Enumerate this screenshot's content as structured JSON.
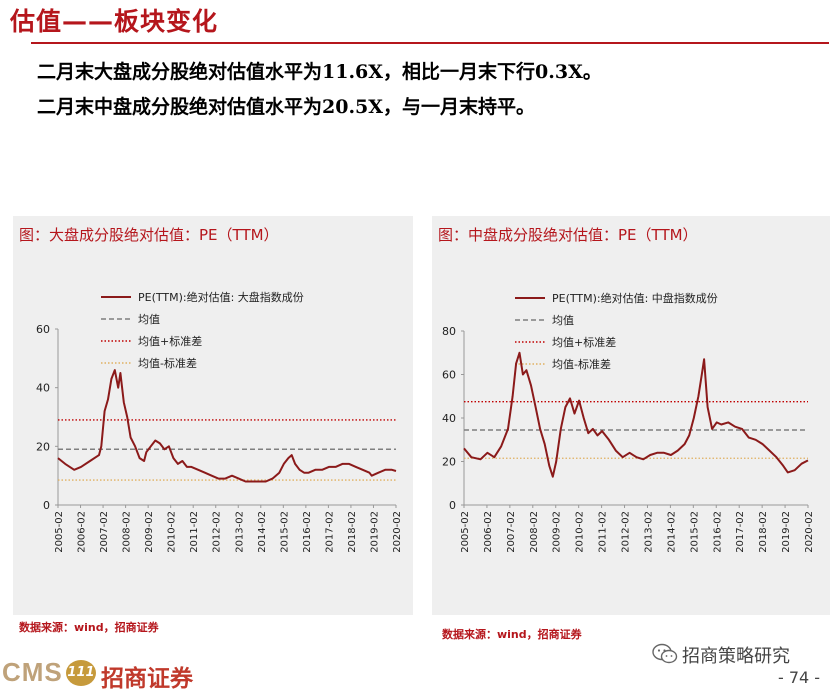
{
  "header": {
    "title": "估值——板块变化",
    "bullets": [
      "二月末大盘成分股绝对估值水平为11.6X，相比一月末下行0.3X。",
      "二月末中盘成分股绝对估值水平为20.5X，与一月末持平。"
    ]
  },
  "colors": {
    "accent": "#b5161c",
    "series": "#8b1a1a",
    "mean": "#7f7f7f",
    "plus_sd": "#c00000",
    "minus_sd": "#e0b060",
    "panel_bg": "#efefef"
  },
  "charts_text": {
    "left": {
      "title_lead": "图：",
      "title_text": "大盘成分股绝对估值：PE（TTM）",
      "source": "数据来源：wind，招商证券"
    },
    "right": {
      "title_lead": "图：",
      "title_text": "中盘成分股绝对估值：PE（TTM）",
      "source": "数据来源：wind，招商证券"
    }
  },
  "chart_data": [
    {
      "type": "line",
      "title": "图：大盘成分股绝对估值：PE（TTM）",
      "xlabel": "",
      "ylabel": "",
      "x_ticks": [
        "2005-02",
        "2006-02",
        "2007-02",
        "2008-02",
        "2009-02",
        "2010-02",
        "2011-02",
        "2012-02",
        "2013-02",
        "2014-02",
        "2015-02",
        "2016-02",
        "2017-02",
        "2018-02",
        "2019-02",
        "2020-02"
      ],
      "ylim": [
        0,
        60
      ],
      "y_ticks": [
        0,
        20,
        40,
        60
      ],
      "grid": false,
      "legend_position": "top",
      "series": [
        {
          "name": "PE(TTM):绝对估值: 大盘指数成份",
          "style": "solid",
          "x": [
            2005.08,
            2005.4,
            2005.8,
            2006.1,
            2006.5,
            2006.9,
            2007.0,
            2007.15,
            2007.3,
            2007.45,
            2007.6,
            2007.75,
            2007.85,
            2008.0,
            2008.15,
            2008.3,
            2008.5,
            2008.7,
            2008.9,
            2009.0,
            2009.2,
            2009.4,
            2009.6,
            2009.8,
            2010.0,
            2010.2,
            2010.4,
            2010.6,
            2010.8,
            2011.0,
            2011.3,
            2011.6,
            2011.9,
            2012.2,
            2012.5,
            2012.8,
            2013.1,
            2013.4,
            2013.7,
            2014.0,
            2014.3,
            2014.6,
            2014.9,
            2015.1,
            2015.3,
            2015.45,
            2015.6,
            2015.8,
            2016.0,
            2016.2,
            2016.5,
            2016.8,
            2017.1,
            2017.4,
            2017.7,
            2018.0,
            2018.3,
            2018.6,
            2018.9,
            2019.0,
            2019.3,
            2019.6,
            2019.9,
            2020.08
          ],
          "values": [
            16,
            14,
            12,
            13,
            15,
            17,
            20,
            32,
            36,
            43,
            46,
            40,
            45,
            35,
            30,
            23,
            20,
            16,
            15,
            18,
            20,
            22,
            21,
            19,
            20,
            16,
            14,
            15,
            13,
            13,
            12,
            11,
            10,
            9,
            9,
            10,
            9,
            8,
            8,
            8,
            8,
            9,
            11,
            14,
            16,
            17,
            14,
            12,
            11,
            11,
            12,
            12,
            13,
            13,
            14,
            14,
            13,
            12,
            11,
            10,
            11,
            12,
            12,
            11.6
          ]
        },
        {
          "name": "均值",
          "style": "dashed",
          "constant": 19
        },
        {
          "name": "均值+标准差",
          "style": "dotted",
          "constant": 29
        },
        {
          "name": "均值-标准差",
          "style": "dotted",
          "constant": 8.5
        }
      ]
    },
    {
      "type": "line",
      "title": "图：中盘成分股绝对估值：PE（TTM）",
      "xlabel": "",
      "ylabel": "",
      "x_ticks": [
        "2005-02",
        "2006-02",
        "2007-02",
        "2008-02",
        "2009-02",
        "2010-02",
        "2011-02",
        "2012-02",
        "2013-02",
        "2014-02",
        "2015-02",
        "2016-02",
        "2017-02",
        "2018-02",
        "2019-02",
        "2020-02"
      ],
      "ylim": [
        0,
        80
      ],
      "y_ticks": [
        0,
        20,
        40,
        60,
        80
      ],
      "grid": false,
      "legend_position": "top",
      "series": [
        {
          "name": "PE(TTM):绝对估值: 中盘指数成份",
          "style": "solid",
          "x": [
            2005.08,
            2005.4,
            2005.8,
            2006.1,
            2006.4,
            2006.7,
            2007.0,
            2007.2,
            2007.35,
            2007.5,
            2007.65,
            2007.8,
            2008.0,
            2008.2,
            2008.4,
            2008.6,
            2008.8,
            2008.95,
            2009.1,
            2009.3,
            2009.5,
            2009.7,
            2009.9,
            2010.1,
            2010.3,
            2010.5,
            2010.7,
            2010.9,
            2011.1,
            2011.4,
            2011.7,
            2012.0,
            2012.3,
            2012.6,
            2012.9,
            2013.2,
            2013.5,
            2013.8,
            2014.1,
            2014.4,
            2014.7,
            2014.9,
            2015.1,
            2015.3,
            2015.45,
            2015.55,
            2015.7,
            2015.9,
            2016.1,
            2016.3,
            2016.6,
            2016.9,
            2017.2,
            2017.5,
            2017.8,
            2018.1,
            2018.4,
            2018.7,
            2019.0,
            2019.2,
            2019.5,
            2019.8,
            2020.08
          ],
          "values": [
            26,
            22,
            21,
            24,
            22,
            27,
            35,
            50,
            65,
            70,
            60,
            62,
            55,
            45,
            35,
            28,
            18,
            13,
            20,
            35,
            45,
            49,
            42,
            48,
            40,
            33,
            35,
            32,
            34,
            30,
            25,
            22,
            24,
            22,
            21,
            23,
            24,
            24,
            23,
            25,
            28,
            32,
            40,
            50,
            60,
            67,
            45,
            35,
            38,
            37,
            38,
            36,
            35,
            31,
            30,
            28,
            25,
            22,
            18,
            15,
            16,
            19,
            20.5
          ]
        },
        {
          "name": "均值",
          "style": "dashed",
          "constant": 34.5
        },
        {
          "name": "均值+标准差",
          "style": "dotted",
          "constant": 47.5
        },
        {
          "name": "均值-标准差",
          "style": "dotted",
          "constant": 21.5
        }
      ]
    }
  ],
  "footer": {
    "logo_text": "CMS",
    "logo_badge": "111",
    "logo_cn": "招商证券",
    "wechat_name": "招商策略研究",
    "page": "- 74 -"
  }
}
